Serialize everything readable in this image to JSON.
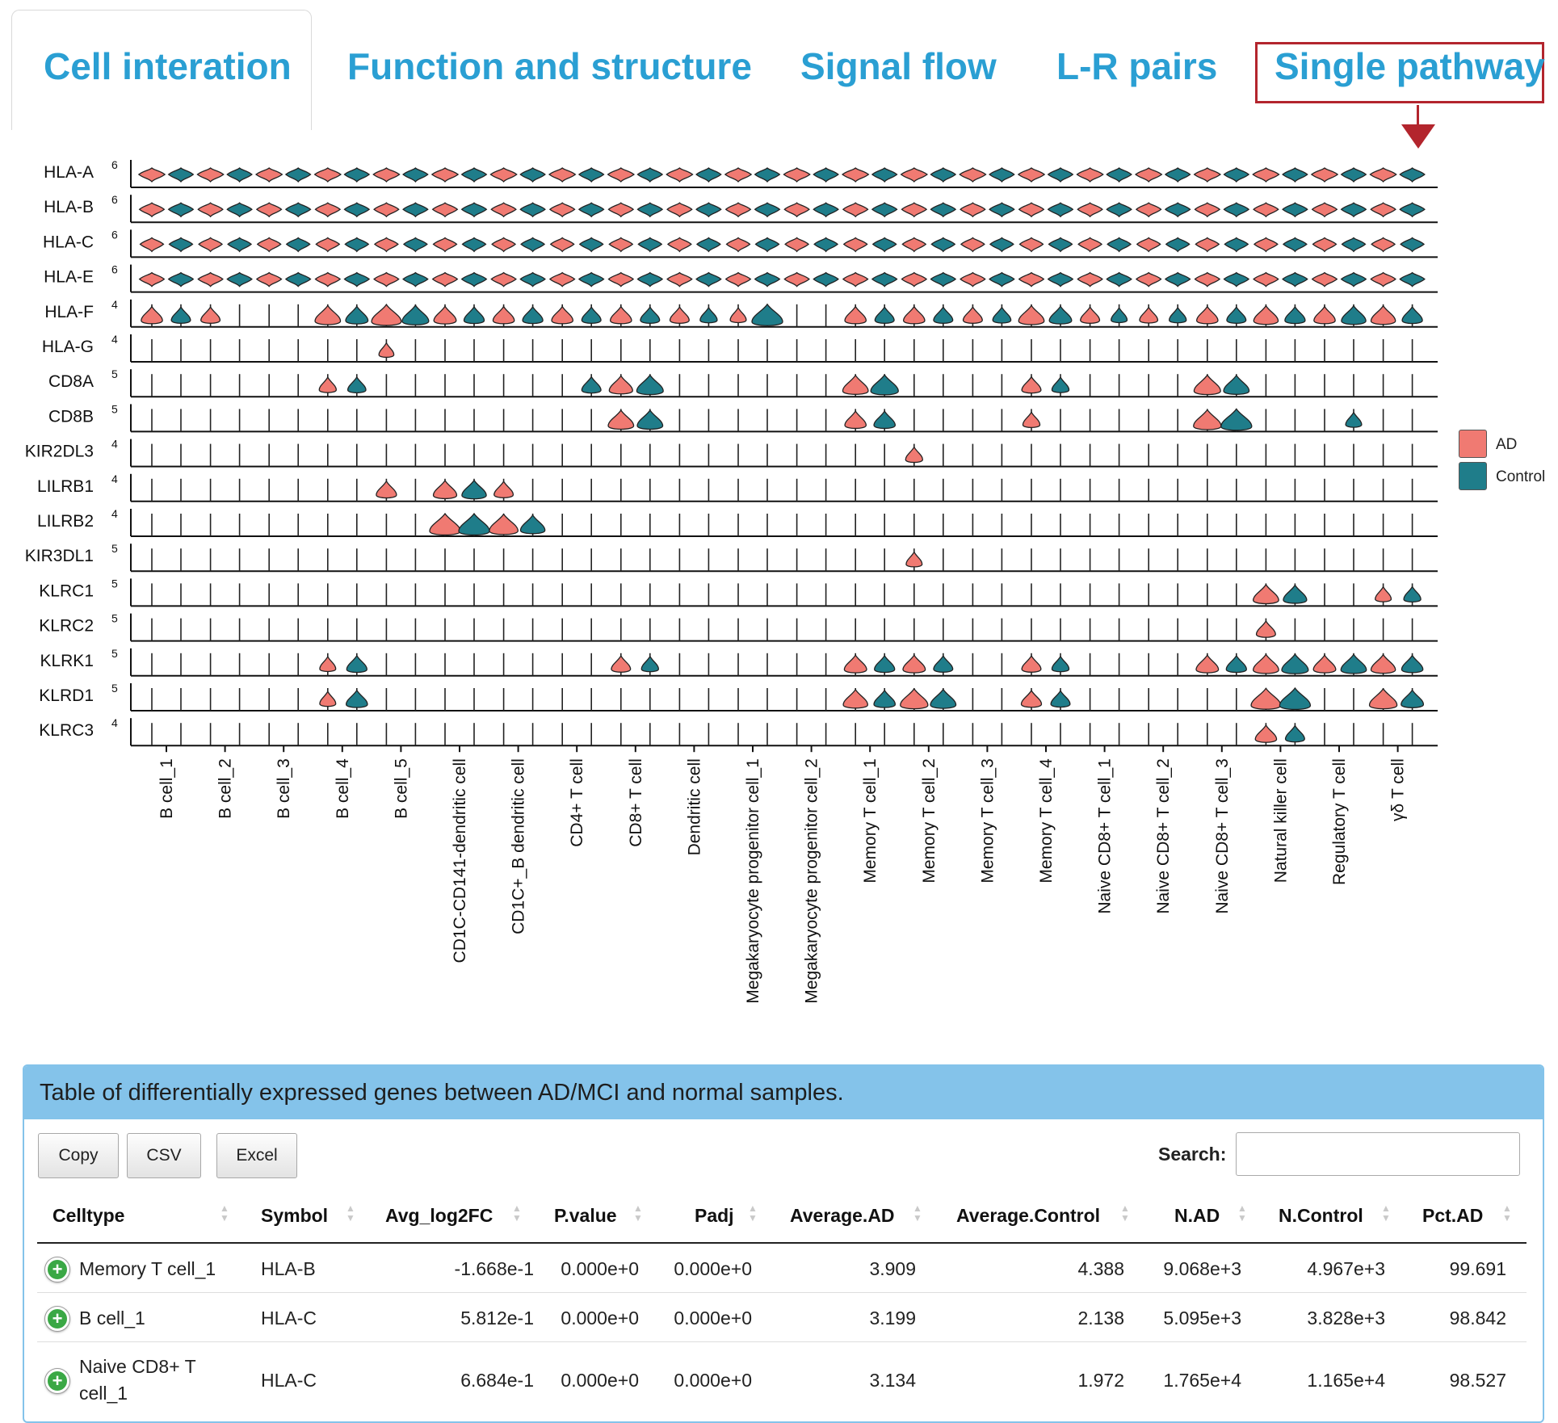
{
  "tabs": [
    {
      "label": "Cell interation"
    },
    {
      "label": "Function and structure"
    },
    {
      "label": "Signal flow"
    },
    {
      "label": "L-R pairs"
    },
    {
      "label": "Single pathway"
    }
  ],
  "chart_data": {
    "type": "violin",
    "genes": [
      "HLA-A",
      "HLA-B",
      "HLA-C",
      "HLA-E",
      "HLA-F",
      "HLA-G",
      "CD8A",
      "CD8B",
      "KIR2DL3",
      "LILRB1",
      "LILRB2",
      "KIR3DL1",
      "KLRC1",
      "KLRC2",
      "KLRK1",
      "KLRD1",
      "KLRC3"
    ],
    "ymax": [
      6,
      6,
      6,
      6,
      4,
      4,
      5,
      5,
      4,
      4,
      4,
      5,
      5,
      5,
      5,
      5,
      4
    ],
    "celltypes": [
      "B cell_1",
      "B cell_2",
      "B cell_3",
      "B cell_4",
      "B cell_5",
      "CD1C-CD141-dendritic cell",
      "CD1C+_B dendritic cell",
      "CD4+ T cell",
      "CD8+ T cell",
      "Dendritic cell",
      "Megakaryocyte progenitor cell_1",
      "Megakaryocyte progenitor cell_2",
      "Memory T cell_1",
      "Memory T cell_2",
      "Memory T cell_3",
      "Memory T cell_4",
      "Naive CD8+ T cell_1",
      "Naive CD8+ T cell_2",
      "Naive CD8+ T cell_3",
      "Natural killer cell",
      "Regulatory T cell",
      "γδ T cell"
    ],
    "legend": [
      {
        "name": "AD",
        "color": "#f07a72"
      },
      {
        "name": "Control",
        "color": "#1f7d8a"
      }
    ],
    "expressed": {
      "HLA-F": [
        [
          0,
          "AD",
          0.55
        ],
        [
          0,
          "Control",
          0.45
        ],
        [
          1,
          "AD",
          0.45
        ],
        [
          3,
          "AD",
          0.75
        ],
        [
          3,
          "Control",
          0.6
        ],
        [
          4,
          "AD",
          0.95
        ],
        [
          4,
          "Control",
          0.8
        ],
        [
          5,
          "AD",
          0.6
        ],
        [
          5,
          "Control",
          0.5
        ],
        [
          6,
          "AD",
          0.55
        ],
        [
          6,
          "Control",
          0.5
        ],
        [
          7,
          "AD",
          0.55
        ],
        [
          7,
          "Control",
          0.45
        ],
        [
          8,
          "AD",
          0.55
        ],
        [
          8,
          "Control",
          0.45
        ],
        [
          9,
          "AD",
          0.45
        ],
        [
          9,
          "Control",
          0.35
        ],
        [
          10,
          "AD",
          0.3
        ],
        [
          10,
          "Control",
          1.0
        ],
        [
          12,
          "AD",
          0.55
        ],
        [
          12,
          "Control",
          0.45
        ],
        [
          13,
          "AD",
          0.55
        ],
        [
          13,
          "Control",
          0.45
        ],
        [
          14,
          "AD",
          0.45
        ],
        [
          14,
          "Control",
          0.4
        ],
        [
          15,
          "AD",
          0.75
        ],
        [
          15,
          "Control",
          0.6
        ],
        [
          16,
          "AD",
          0.45
        ],
        [
          16,
          "Control",
          0.3
        ],
        [
          17,
          "AD",
          0.4
        ],
        [
          17,
          "Control",
          0.35
        ],
        [
          18,
          "AD",
          0.55
        ],
        [
          18,
          "Control",
          0.45
        ],
        [
          19,
          "AD",
          0.7
        ],
        [
          19,
          "Control",
          0.5
        ],
        [
          20,
          "AD",
          0.55
        ],
        [
          20,
          "Control",
          0.7
        ],
        [
          21,
          "AD",
          0.7
        ],
        [
          21,
          "Control",
          0.5
        ]
      ],
      "HLA-G": [
        [
          4,
          "AD",
          0.25
        ]
      ],
      "CD8A": [
        [
          3,
          "AD",
          0.35
        ],
        [
          3,
          "Control",
          0.4
        ],
        [
          7,
          "Control",
          0.45
        ],
        [
          8,
          "AD",
          0.65
        ],
        [
          8,
          "Control",
          0.8
        ],
        [
          12,
          "AD",
          0.75
        ],
        [
          12,
          "Control",
          0.85
        ],
        [
          15,
          "AD",
          0.45
        ],
        [
          15,
          "Control",
          0.35
        ],
        [
          18,
          "AD",
          0.8
        ],
        [
          18,
          "Control",
          0.75
        ]
      ],
      "CD8B": [
        [
          8,
          "AD",
          0.75
        ],
        [
          8,
          "Control",
          0.75
        ],
        [
          12,
          "AD",
          0.55
        ],
        [
          12,
          "Control",
          0.55
        ],
        [
          15,
          "AD",
          0.35
        ],
        [
          18,
          "AD",
          0.85
        ],
        [
          18,
          "Control",
          1.0
        ],
        [
          20,
          "Control",
          0.3
        ]
      ],
      "KIR2DL3": [
        [
          13,
          "AD",
          0.35
        ]
      ],
      "LILRB1": [
        [
          4,
          "AD",
          0.5
        ],
        [
          5,
          "AD",
          0.65
        ],
        [
          5,
          "Control",
          0.7
        ],
        [
          6,
          "AD",
          0.45
        ]
      ],
      "LILRB2": [
        [
          5,
          "AD",
          1.0
        ],
        [
          5,
          "Control",
          1.0
        ],
        [
          6,
          "AD",
          0.9
        ],
        [
          6,
          "Control",
          0.7
        ]
      ],
      "KIR3DL1": [
        [
          13,
          "AD",
          0.3
        ]
      ],
      "KLRC1": [
        [
          19,
          "AD",
          0.75
        ],
        [
          19,
          "Control",
          0.65
        ],
        [
          21,
          "AD",
          0.3
        ],
        [
          21,
          "Control",
          0.35
        ]
      ],
      "KLRC2": [
        [
          19,
          "AD",
          0.45
        ]
      ],
      "KLRK1": [
        [
          3,
          "AD",
          0.3
        ],
        [
          3,
          "Control",
          0.5
        ],
        [
          8,
          "AD",
          0.45
        ],
        [
          8,
          "Control",
          0.35
        ],
        [
          12,
          "AD",
          0.6
        ],
        [
          12,
          "Control",
          0.5
        ],
        [
          13,
          "AD",
          0.6
        ],
        [
          13,
          "Control",
          0.45
        ],
        [
          15,
          "AD",
          0.45
        ],
        [
          15,
          "Control",
          0.35
        ],
        [
          18,
          "AD",
          0.6
        ],
        [
          18,
          "Control",
          0.5
        ],
        [
          19,
          "AD",
          0.75
        ],
        [
          19,
          "Control",
          0.8
        ],
        [
          20,
          "AD",
          0.6
        ],
        [
          20,
          "Control",
          0.75
        ],
        [
          21,
          "AD",
          0.7
        ],
        [
          21,
          "Control",
          0.55
        ]
      ],
      "KLRD1": [
        [
          3,
          "AD",
          0.3
        ],
        [
          3,
          "Control",
          0.55
        ],
        [
          12,
          "AD",
          0.7
        ],
        [
          12,
          "Control",
          0.55
        ],
        [
          13,
          "AD",
          0.85
        ],
        [
          13,
          "Control",
          0.75
        ],
        [
          15,
          "AD",
          0.5
        ],
        [
          15,
          "Control",
          0.45
        ],
        [
          19,
          "AD",
          0.95
        ],
        [
          19,
          "Control",
          1.0
        ],
        [
          21,
          "AD",
          0.85
        ],
        [
          21,
          "Control",
          0.6
        ]
      ],
      "KLRC3": [
        [
          19,
          "AD",
          0.55
        ],
        [
          19,
          "Control",
          0.45
        ]
      ]
    }
  },
  "table": {
    "title": "Table of differentially expressed genes between AD/MCI and normal samples.",
    "buttons": [
      {
        "label": "Copy"
      },
      {
        "label": "CSV"
      },
      {
        "label": "Excel"
      }
    ],
    "search_label": "Search:",
    "search_value": "",
    "columns": [
      "Celltype",
      "Symbol",
      "Avg_log2FC",
      "P.value",
      "Padj",
      "Average.AD",
      "Average.Control",
      "N.AD",
      "N.Control",
      "Pct.AD"
    ],
    "rows": [
      {
        "celltype": "Memory T cell_1",
        "symbol": "HLA-B",
        "avg_log2fc": "-1.668e-1",
        "pvalue": "0.000e+0",
        "padj": "0.000e+0",
        "average_ad": "3.909",
        "average_control": "4.388",
        "n_ad": "9.068e+3",
        "n_control": "4.967e+3",
        "pct_ad": "99.691"
      },
      {
        "celltype": "B cell_1",
        "symbol": "HLA-C",
        "avg_log2fc": "5.812e-1",
        "pvalue": "0.000e+0",
        "padj": "0.000e+0",
        "average_ad": "3.199",
        "average_control": "2.138",
        "n_ad": "5.095e+3",
        "n_control": "3.828e+3",
        "pct_ad": "98.842"
      },
      {
        "celltype": "Naive CD8+ T cell_1",
        "celltype_line1": "Naive CD8+ T",
        "celltype_line2": "cell_1",
        "symbol": "HLA-C",
        "avg_log2fc": "6.684e-1",
        "pvalue": "0.000e+0",
        "padj": "0.000e+0",
        "average_ad": "3.134",
        "average_control": "1.972",
        "n_ad": "1.765e+4",
        "n_control": "1.165e+4",
        "pct_ad": "98.527"
      }
    ]
  }
}
